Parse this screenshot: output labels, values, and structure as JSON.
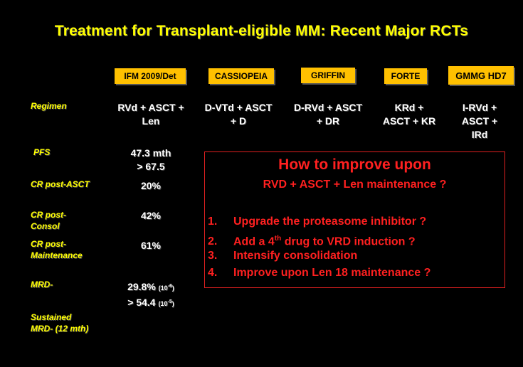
{
  "title": "Treatment for Transplant-eligible MM: Recent Major RCTs",
  "headers": [
    "IFM 2009/Det",
    "CASSIOPEIA",
    "GRIFFIN",
    "FORTE",
    "GMMG HD7"
  ],
  "row_labels": {
    "regimen": "Regimen",
    "pfs": "PFS",
    "cr_asct": "CR post-ASCT",
    "cr_consol_1": "CR post-",
    "cr_consol_2": "Consol",
    "cr_maint_1": "CR post-",
    "cr_maint_2": "Maintenance",
    "mrd": "MRD-",
    "sustained_1": "Sustained",
    "sustained_2": "MRD- (12 mth)"
  },
  "regimens": {
    "ifm_1": "RVd + ASCT +",
    "ifm_2": "Len",
    "cas_1": "D-VTd + ASCT",
    "cas_2": "+ D",
    "gri_1": "D-RVd + ASCT",
    "gri_2": "+ DR",
    "for_1": "KRd +",
    "for_2": "ASCT + KR",
    "gm_1": "I-RVd +",
    "gm_2": "ASCT +",
    "gm_3": "IRd"
  },
  "ifm_values": {
    "pfs_1": "47.3 mth",
    "pfs_2": "> 67.5",
    "cr_asct": "20%",
    "cr_consol": "42%",
    "cr_maint": "61%",
    "mrd_1": "29.8%",
    "mrd_1_unit": "(10",
    "mrd_1_exp": "-6",
    "mrd_2": "> 54.4",
    "mrd_2_unit": "(10",
    "mrd_2_exp": "-5",
    "close_paren": ")"
  },
  "callout": {
    "heading": "How to improve upon",
    "subheading": "RVD + ASCT + Len maintenance ?",
    "items": [
      {
        "num": "1.",
        "text": "Upgrade the proteasome inhibitor ?"
      },
      {
        "num": "2.",
        "text_a": "Add a 4",
        "sup": "th",
        "text_b": " drug to VRD induction ?"
      },
      {
        "num": "3.",
        "text": "Intensify consolidation"
      },
      {
        "num": "4.",
        "text": "Improve upon Len 18 maintenance ?"
      }
    ]
  },
  "colors": {
    "title": "#ffff00",
    "header_bg": "#ffc000",
    "callout": "#ff2020"
  }
}
